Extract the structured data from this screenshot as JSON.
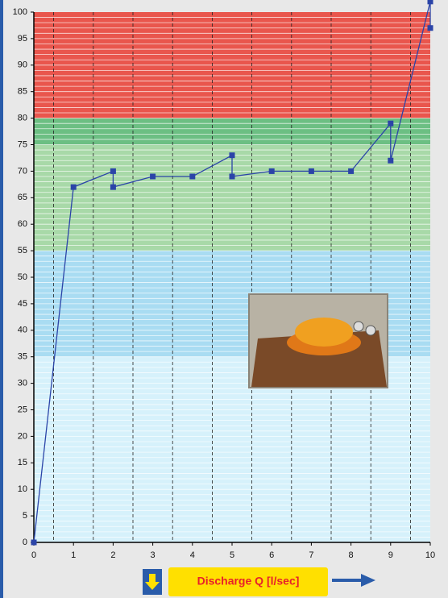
{
  "chart_data": {
    "type": "line",
    "x_label": "Discharge Q [l/sec]",
    "xlim": [
      0,
      10
    ],
    "xticks": [
      0,
      1,
      2,
      3,
      4,
      5,
      6,
      7,
      8,
      9,
      10
    ],
    "ylim": [
      0,
      100
    ],
    "yticks": [
      0,
      5,
      10,
      15,
      20,
      25,
      30,
      35,
      40,
      45,
      50,
      55,
      60,
      65,
      70,
      75,
      80,
      85,
      90,
      95,
      100
    ],
    "bands": [
      {
        "from": 80,
        "to": 100,
        "color": "#e9564d"
      },
      {
        "from": 75,
        "to": 80,
        "color": "#6cbf83"
      },
      {
        "from": 55,
        "to": 75,
        "color": "#a8d9a8"
      },
      {
        "from": 35,
        "to": 55,
        "color": "#a9dcf2"
      },
      {
        "from": 0,
        "to": 35,
        "color": "#d6f1fb"
      }
    ],
    "series": [
      {
        "color": "#2b44a8",
        "x": [
          0,
          1,
          2,
          2,
          3,
          4,
          5,
          5,
          6,
          7,
          8,
          9,
          9,
          10,
          10
        ],
        "y": [
          0,
          67,
          70,
          67,
          69,
          69,
          73,
          69,
          70,
          70,
          70,
          79,
          72,
          102,
          97
        ]
      }
    ]
  }
}
